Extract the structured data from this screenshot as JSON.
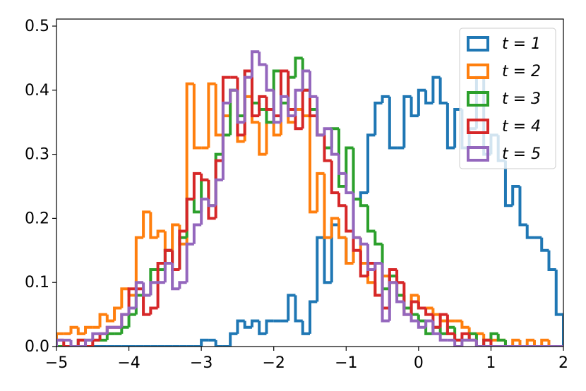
{
  "chart_data": {
    "type": "histogram",
    "bins": [
      -5,
      -4.9,
      -4.8,
      -4.7,
      -4.6,
      -4.5,
      -4.4,
      -4.3,
      -4.2,
      -4.1,
      -4,
      -3.9,
      -3.8,
      -3.7,
      -3.6,
      -3.5,
      -3.4,
      -3.3,
      -3.2,
      -3.1,
      -3,
      -2.9,
      -2.8,
      -2.7,
      -2.6,
      -2.5,
      -2.4,
      -2.3,
      -2.2,
      -2.1,
      -2,
      -1.9,
      -1.8,
      -1.7,
      -1.6,
      -1.5,
      -1.4,
      -1.3,
      -1.2,
      -1.1,
      -1,
      -0.9,
      -0.8,
      -0.7,
      -0.6,
      -0.5,
      -0.4,
      -0.3,
      -0.2,
      -0.1,
      0,
      0.1,
      0.2,
      0.3,
      0.4,
      0.5,
      0.6,
      0.7,
      0.8,
      0.9,
      1,
      1.1,
      1.2,
      1.3,
      1.4,
      1.5,
      1.6,
      1.7,
      1.8,
      1.9,
      2
    ],
    "series": [
      {
        "name": "t = 1",
        "color": "#1f77b4",
        "values": [
          0,
          0,
          0,
          0,
          0,
          0,
          0,
          0,
          0,
          0,
          0,
          0,
          0,
          0,
          0,
          0,
          0,
          0,
          0,
          0,
          0.01,
          0.01,
          0,
          0,
          0.02,
          0.04,
          0.03,
          0.04,
          0.02,
          0.04,
          0.04,
          0.04,
          0.08,
          0.04,
          0.02,
          0.07,
          0.17,
          0.1,
          0.19,
          0.17,
          0.13,
          0.23,
          0.24,
          0.33,
          0.38,
          0.39,
          0.31,
          0.31,
          0.39,
          0.36,
          0.4,
          0.38,
          0.42,
          0.38,
          0.31,
          0.37,
          0.31,
          0.34,
          0.42,
          0.3,
          0.33,
          0.29,
          0.22,
          0.25,
          0.19,
          0.17,
          0.17,
          0.15,
          0.12,
          0.05
        ]
      },
      {
        "name": "t = 2",
        "color": "#ff7f0e",
        "values": [
          0.02,
          0.02,
          0.03,
          0.02,
          0.03,
          0.03,
          0.05,
          0.04,
          0.06,
          0.09,
          0.08,
          0.17,
          0.21,
          0.17,
          0.18,
          0.15,
          0.19,
          0.16,
          0.41,
          0.31,
          0.31,
          0.41,
          0.33,
          0.36,
          0.4,
          0.32,
          0.39,
          0.35,
          0.3,
          0.35,
          0.33,
          0.38,
          0.35,
          0.37,
          0.36,
          0.21,
          0.27,
          0.17,
          0.2,
          0.17,
          0.13,
          0.17,
          0.13,
          0.1,
          0.08,
          0.11,
          0.1,
          0.08,
          0.06,
          0.08,
          0.06,
          0.06,
          0.05,
          0.04,
          0.04,
          0.04,
          0.03,
          0.02,
          0.02,
          0.01,
          0.01,
          0.01,
          0,
          0.01,
          0,
          0.01,
          0,
          0.01,
          0,
          0
        ]
      },
      {
        "name": "t = 3",
        "color": "#2ca02c",
        "values": [
          0,
          0,
          0,
          0.01,
          0.01,
          0.01,
          0.01,
          0.02,
          0.02,
          0.03,
          0.05,
          0.08,
          0.08,
          0.12,
          0.12,
          0.15,
          0.12,
          0.17,
          0.23,
          0.21,
          0.26,
          0.22,
          0.3,
          0.33,
          0.4,
          0.36,
          0.43,
          0.38,
          0.37,
          0.35,
          0.43,
          0.38,
          0.42,
          0.45,
          0.4,
          0.37,
          0.33,
          0.31,
          0.34,
          0.25,
          0.31,
          0.23,
          0.22,
          0.18,
          0.16,
          0.09,
          0.11,
          0.08,
          0.06,
          0.05,
          0.04,
          0.02,
          0.03,
          0.02,
          0.03,
          0.01,
          0.01,
          0.02,
          0,
          0.01,
          0.02,
          0.01,
          0,
          0,
          0,
          0,
          0,
          0,
          0,
          0
        ]
      },
      {
        "name": "t = 4",
        "color": "#d62728",
        "values": [
          0.01,
          0,
          0,
          0.01,
          0,
          0.01,
          0.02,
          0.03,
          0.03,
          0.05,
          0.09,
          0.09,
          0.05,
          0.06,
          0.13,
          0.15,
          0.12,
          0.18,
          0.23,
          0.27,
          0.26,
          0.2,
          0.29,
          0.42,
          0.42,
          0.33,
          0.43,
          0.36,
          0.39,
          0.37,
          0.36,
          0.43,
          0.37,
          0.34,
          0.4,
          0.36,
          0.33,
          0.29,
          0.24,
          0.22,
          0.18,
          0.15,
          0.11,
          0.13,
          0.08,
          0.06,
          0.12,
          0.1,
          0.05,
          0.07,
          0.06,
          0.05,
          0.03,
          0.05,
          0.02,
          0.01,
          0.02,
          0.01,
          0,
          0.01,
          0,
          0,
          0,
          0,
          0,
          0,
          0,
          0,
          0,
          0
        ]
      },
      {
        "name": "t = 5",
        "color": "#9467bd",
        "values": [
          0.01,
          0.01,
          0,
          0,
          0.01,
          0.02,
          0.02,
          0.03,
          0.03,
          0.05,
          0.06,
          0.1,
          0.08,
          0.1,
          0.1,
          0.13,
          0.09,
          0.1,
          0.16,
          0.19,
          0.23,
          0.22,
          0.26,
          0.38,
          0.4,
          0.35,
          0.42,
          0.46,
          0.44,
          0.4,
          0.35,
          0.39,
          0.36,
          0.4,
          0.43,
          0.39,
          0.33,
          0.34,
          0.3,
          0.27,
          0.24,
          0.17,
          0.16,
          0.12,
          0.13,
          0.04,
          0.1,
          0.07,
          0.05,
          0.04,
          0.03,
          0.04,
          0.02,
          0.01,
          0.01,
          0,
          0.01,
          0.01,
          0,
          0,
          0,
          0,
          0,
          0,
          0,
          0,
          0,
          0,
          0,
          0
        ]
      }
    ],
    "xlim": [
      -5,
      2
    ],
    "ylim": [
      0,
      0.511
    ],
    "xticks": [
      {
        "value": -5,
        "label": "−5"
      },
      {
        "value": -4,
        "label": "−4"
      },
      {
        "value": -3,
        "label": "−3"
      },
      {
        "value": -2,
        "label": "−2"
      },
      {
        "value": -1,
        "label": "−1"
      },
      0,
      1,
      2
    ],
    "yticks": [
      {
        "value": 0,
        "label": "0.0"
      },
      0.1,
      0.2,
      0.3,
      0.4,
      0.5
    ],
    "legend": "upper right"
  }
}
